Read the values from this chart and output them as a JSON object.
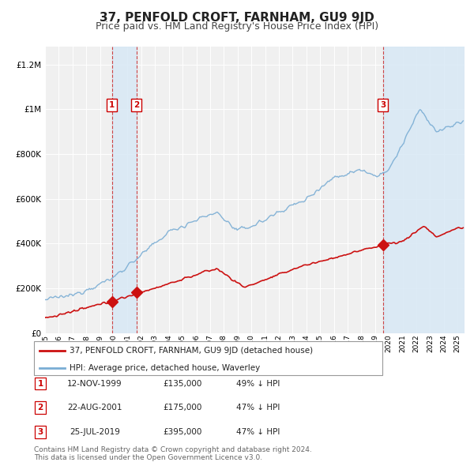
{
  "title": "37, PENFOLD CROFT, FARNHAM, GU9 9JD",
  "subtitle": "Price paid vs. HM Land Registry's House Price Index (HPI)",
  "title_fontsize": 11,
  "subtitle_fontsize": 9,
  "background_color": "#ffffff",
  "plot_bg_color": "#f0f0f0",
  "grid_color": "#ffffff",
  "hpi_color": "#7aadd4",
  "price_color": "#cc1111",
  "sale_marker_color": "#cc1111",
  "sale_dot_size": 7,
  "shade_color": "#d8e8f5",
  "dashed_line_color": "#cc3333",
  "xlim": [
    1995.0,
    2025.5
  ],
  "ylim": [
    0,
    1280000
  ],
  "yticks": [
    0,
    200000,
    400000,
    600000,
    800000,
    1000000,
    1200000
  ],
  "ytick_labels": [
    "£0",
    "£200K",
    "£400K",
    "£600K",
    "£800K",
    "£1M",
    "£1.2M"
  ],
  "xticks": [
    1995,
    1996,
    1997,
    1998,
    1999,
    2000,
    2001,
    2002,
    2003,
    2004,
    2005,
    2006,
    2007,
    2008,
    2009,
    2010,
    2011,
    2012,
    2013,
    2014,
    2015,
    2016,
    2017,
    2018,
    2019,
    2020,
    2021,
    2022,
    2023,
    2024,
    2025
  ],
  "sale_events": [
    {
      "label": "1",
      "date_label": "12-NOV-1999",
      "year": 1999.87,
      "price": 135000,
      "price_label": "£135,000",
      "pct_label": "49% ↓ HPI"
    },
    {
      "label": "2",
      "date_label": "22-AUG-2001",
      "year": 2001.64,
      "price": 175000,
      "price_label": "£175,000",
      "pct_label": "47% ↓ HPI"
    },
    {
      "label": "3",
      "date_label": "25-JUL-2019",
      "year": 2019.56,
      "price": 395000,
      "price_label": "£395,000",
      "pct_label": "47% ↓ HPI"
    }
  ],
  "legend_entries": [
    {
      "label": "37, PENFOLD CROFT, FARNHAM, GU9 9JD (detached house)",
      "color": "#cc1111",
      "lw": 2
    },
    {
      "label": "HPI: Average price, detached house, Waverley",
      "color": "#7aadd4",
      "lw": 2
    }
  ],
  "footnote": "Contains HM Land Registry data © Crown copyright and database right 2024.\nThis data is licensed under the Open Government Licence v3.0.",
  "footnote_fontsize": 6.5
}
